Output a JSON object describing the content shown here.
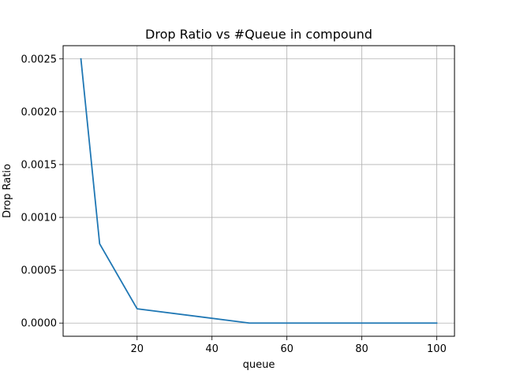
{
  "chart_data": {
    "type": "line",
    "title": "Drop Ratio vs #Queue in compound",
    "xlabel": "queue",
    "ylabel": "Drop Ratio",
    "xlim": [
      0.25,
      104.75
    ],
    "ylim": [
      -0.000125,
      0.002625
    ],
    "xticks": [
      20,
      40,
      60,
      80,
      100
    ],
    "xtick_labels": [
      "20",
      "40",
      "60",
      "80",
      "100"
    ],
    "yticks": [
      0.0,
      0.0005,
      0.001,
      0.0015,
      0.002,
      0.0025
    ],
    "ytick_labels": [
      "0.0000",
      "0.0005",
      "0.0010",
      "0.0015",
      "0.0020",
      "0.0025"
    ],
    "grid": true,
    "series": [
      {
        "color": "#1f77b4",
        "x": [
          5,
          10,
          20,
          50,
          100
        ],
        "y": [
          0.0025,
          0.00075,
          0.000135,
          0.0,
          0.0
        ]
      }
    ]
  }
}
